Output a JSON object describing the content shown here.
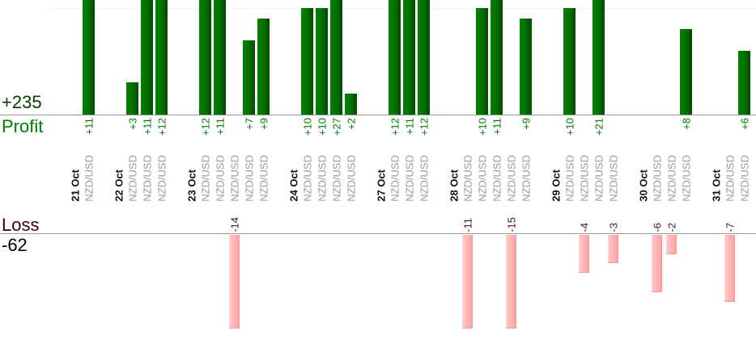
{
  "chart_data": {
    "type": "bar",
    "title": "",
    "symbol_label": "NZD/USD",
    "profit": {
      "label": "Profit",
      "total": "+235"
    },
    "loss": {
      "label": "Loss",
      "total": "-62"
    },
    "groups": [
      {
        "date": "21 Oct",
        "trades": [
          11
        ]
      },
      {
        "date": "22 Oct",
        "trades": [
          3,
          11,
          12
        ]
      },
      {
        "date": "23 Oct",
        "trades": [
          12,
          11,
          -14,
          7,
          9
        ]
      },
      {
        "date": "24 Oct",
        "trades": [
          10,
          10,
          27,
          2
        ]
      },
      {
        "date": "27 Oct",
        "trades": [
          12,
          11,
          12
        ]
      },
      {
        "date": "28 Oct",
        "trades": [
          -11,
          10,
          11,
          -15,
          9
        ]
      },
      {
        "date": "29 Oct",
        "trades": [
          10,
          -4,
          21,
          -3
        ]
      },
      {
        "date": "30 Oct",
        "trades": [
          -6,
          -2,
          8
        ]
      },
      {
        "date": "31 Oct",
        "trades": [
          -7,
          6
        ]
      }
    ],
    "layout_hints": {
      "profit_axis_visible_range": [
        0,
        10.8
      ],
      "loss_axis_visible_range": [
        0,
        -15
      ],
      "bars_above_11_clipped_at_top": true,
      "gridline_at_plus_10": true,
      "legend_position": "none",
      "grid": "single faint horizontal line"
    },
    "colors": {
      "profit_bar": "#027102",
      "profit_bar_dark": "#004a00",
      "loss_bar": "#ffb3b3",
      "profit_value_text": "#007d00",
      "profit_total_text": "#003c00",
      "loss_value_text": "#4a1616",
      "loss_title_text": "#400000",
      "loss_total_text": "#000000",
      "date_text": "#111111",
      "symbol_text": "#999999",
      "axis_line": "#999999"
    }
  }
}
